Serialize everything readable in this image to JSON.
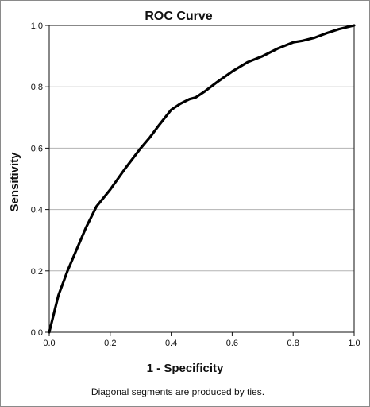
{
  "chart_data": {
    "type": "line",
    "title": "ROC Curve",
    "xlabel": "1 - Specificity",
    "ylabel": "Sensitivity",
    "xlim": [
      0,
      1
    ],
    "ylim": [
      0,
      1
    ],
    "x_ticks": [
      "0.0",
      "0.2",
      "0.4",
      "0.6",
      "0.8",
      "1.0"
    ],
    "y_ticks": [
      "0.0",
      "0.2",
      "0.4",
      "0.6",
      "0.8",
      "1.0"
    ],
    "grid": "horizontal",
    "legend": "none",
    "footnote": "Diagonal segments are produced by ties.",
    "series": [
      {
        "color": "#000000",
        "x": [
          0.0,
          0.03,
          0.06,
          0.09,
          0.12,
          0.155,
          0.2,
          0.25,
          0.3,
          0.33,
          0.36,
          0.4,
          0.43,
          0.46,
          0.48,
          0.51,
          0.55,
          0.6,
          0.65,
          0.7,
          0.75,
          0.8,
          0.83,
          0.87,
          0.91,
          0.95,
          1.0
        ],
        "y": [
          0.0,
          0.12,
          0.2,
          0.27,
          0.34,
          0.41,
          0.465,
          0.535,
          0.6,
          0.635,
          0.675,
          0.725,
          0.745,
          0.76,
          0.765,
          0.785,
          0.815,
          0.85,
          0.88,
          0.9,
          0.925,
          0.945,
          0.95,
          0.96,
          0.975,
          0.988,
          1.0
        ]
      }
    ]
  }
}
